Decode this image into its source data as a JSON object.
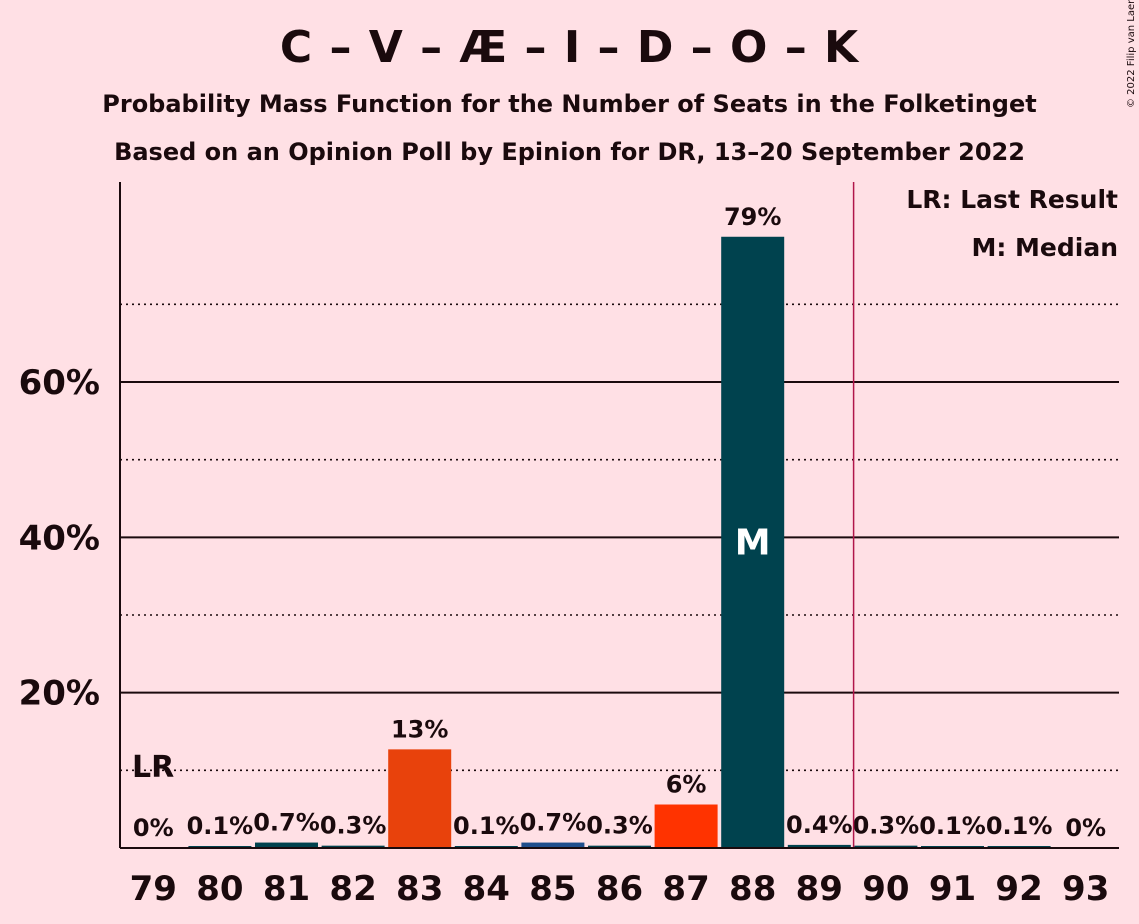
{
  "title": "C – V – Æ – I – D – O – K",
  "subtitle1": "Probability Mass Function for the Number of Seats in the Folketinget",
  "subtitle2": "Based on an Opinion Poll by Epinion for DR, 13–20 September 2022",
  "copyright": "© 2022 Filip van Laenen",
  "legend": {
    "last_result": "LR: Last Result",
    "median": "M: Median"
  },
  "colors": {
    "background": "#FFE0E5",
    "median_bar": "#00424E",
    "orange": "#E8420C",
    "red_orange": "#FF3300",
    "blue": "#1F4E8C",
    "majority_line": "#B0164A"
  },
  "chart_data": {
    "type": "bar",
    "categories": [
      "79",
      "80",
      "81",
      "82",
      "83",
      "84",
      "85",
      "86",
      "87",
      "88",
      "89",
      "90",
      "91",
      "92",
      "93"
    ],
    "values": [
      0,
      0.1,
      0.7,
      0.3,
      13,
      0.1,
      0.7,
      0.3,
      6,
      79,
      0.4,
      0.3,
      0.1,
      0.1,
      0
    ],
    "plot_values": [
      0,
      0.1,
      0.7,
      0.3,
      12.7,
      0.1,
      0.7,
      0.3,
      5.6,
      78.7,
      0.4,
      0.3,
      0.1,
      0.1,
      0
    ],
    "labels": [
      "0%",
      "0.1%",
      "0.7%",
      "0.3%",
      "13%",
      "0.1%",
      "0.7%",
      "0.3%",
      "6%",
      "79%",
      "0.4%",
      "0.3%",
      "0.1%",
      "0.1%",
      "0%"
    ],
    "bar_colors": [
      "#00424E",
      "#00424E",
      "#00424E",
      "#00424E",
      "#E8420C",
      "#00424E",
      "#1F4E8C",
      "#00424E",
      "#FF3300",
      "#00424E",
      "#00424E",
      "#00424E",
      "#00424E",
      "#00424E",
      "#00424E"
    ],
    "yticks": [
      "20%",
      "40%",
      "60%"
    ],
    "ytick_values": [
      20,
      40,
      60
    ],
    "minor_gridlines": [
      10,
      30,
      50,
      70
    ],
    "ylim": [
      0,
      85
    ],
    "last_result": {
      "seats": "79",
      "label": "LR"
    },
    "median": {
      "seats": "88",
      "label": "M"
    },
    "majority_after": "89",
    "legend_position": "top-right"
  }
}
